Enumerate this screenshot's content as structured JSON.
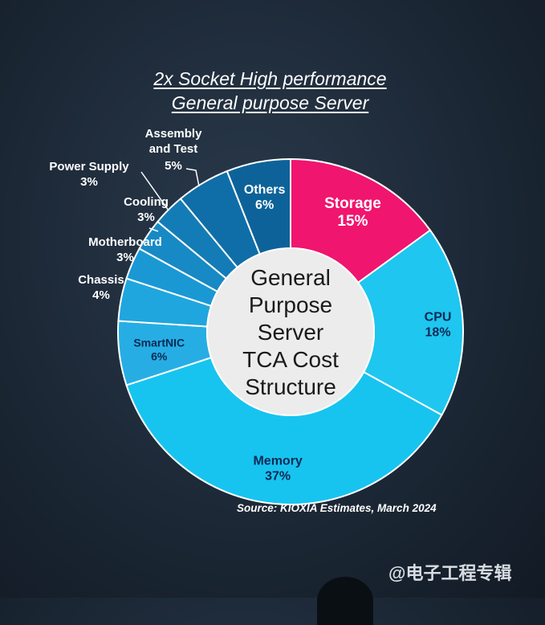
{
  "title_line1": "2x Socket High performance",
  "title_line2": "General purpose Server",
  "center_label": [
    "General",
    "Purpose",
    "Server",
    "TCA Cost",
    "Structure"
  ],
  "source": "Source:  KIOXIA Estimates, March 2024",
  "watermark": "@电子工程专辑",
  "chart_data": {
    "type": "pie",
    "variant": "donut",
    "slices": [
      {
        "label": "Storage",
        "value": 15,
        "display": "15%",
        "color": "#f0156e",
        "label_color": "#ffffff"
      },
      {
        "label": "CPU",
        "value": 18,
        "display": "18%",
        "color": "#1fc6ef",
        "label_color": "#0a2a55"
      },
      {
        "label": "Memory",
        "value": 37,
        "display": "37%",
        "color": "#17c4ef",
        "label_color": "#0a2a55"
      },
      {
        "label": "SmartNIC",
        "value": 6,
        "display": "6%",
        "color": "#26aee4",
        "label_color": "#0a2a55"
      },
      {
        "label": "Chassis",
        "value": 4,
        "display": "4%",
        "color": "#1fa6de",
        "label_color": "#ffffff"
      },
      {
        "label": "Motherboard",
        "value": 3,
        "display": "3%",
        "color": "#1a98d4",
        "label_color": "#ffffff"
      },
      {
        "label": "Cooling",
        "value": 3,
        "display": "3%",
        "color": "#1789c4",
        "label_color": "#ffffff"
      },
      {
        "label": "Power Supply",
        "value": 3,
        "display": "3%",
        "color": "#137cb6",
        "label_color": "#ffffff"
      },
      {
        "label": "Assembly and Test",
        "value": 5,
        "display": "5%",
        "color": "#0f6ea8",
        "label_color": "#ffffff"
      },
      {
        "label": "Others",
        "value": 6,
        "display": "6%",
        "color": "#0d6399",
        "label_color": "#ffffff"
      }
    ]
  }
}
